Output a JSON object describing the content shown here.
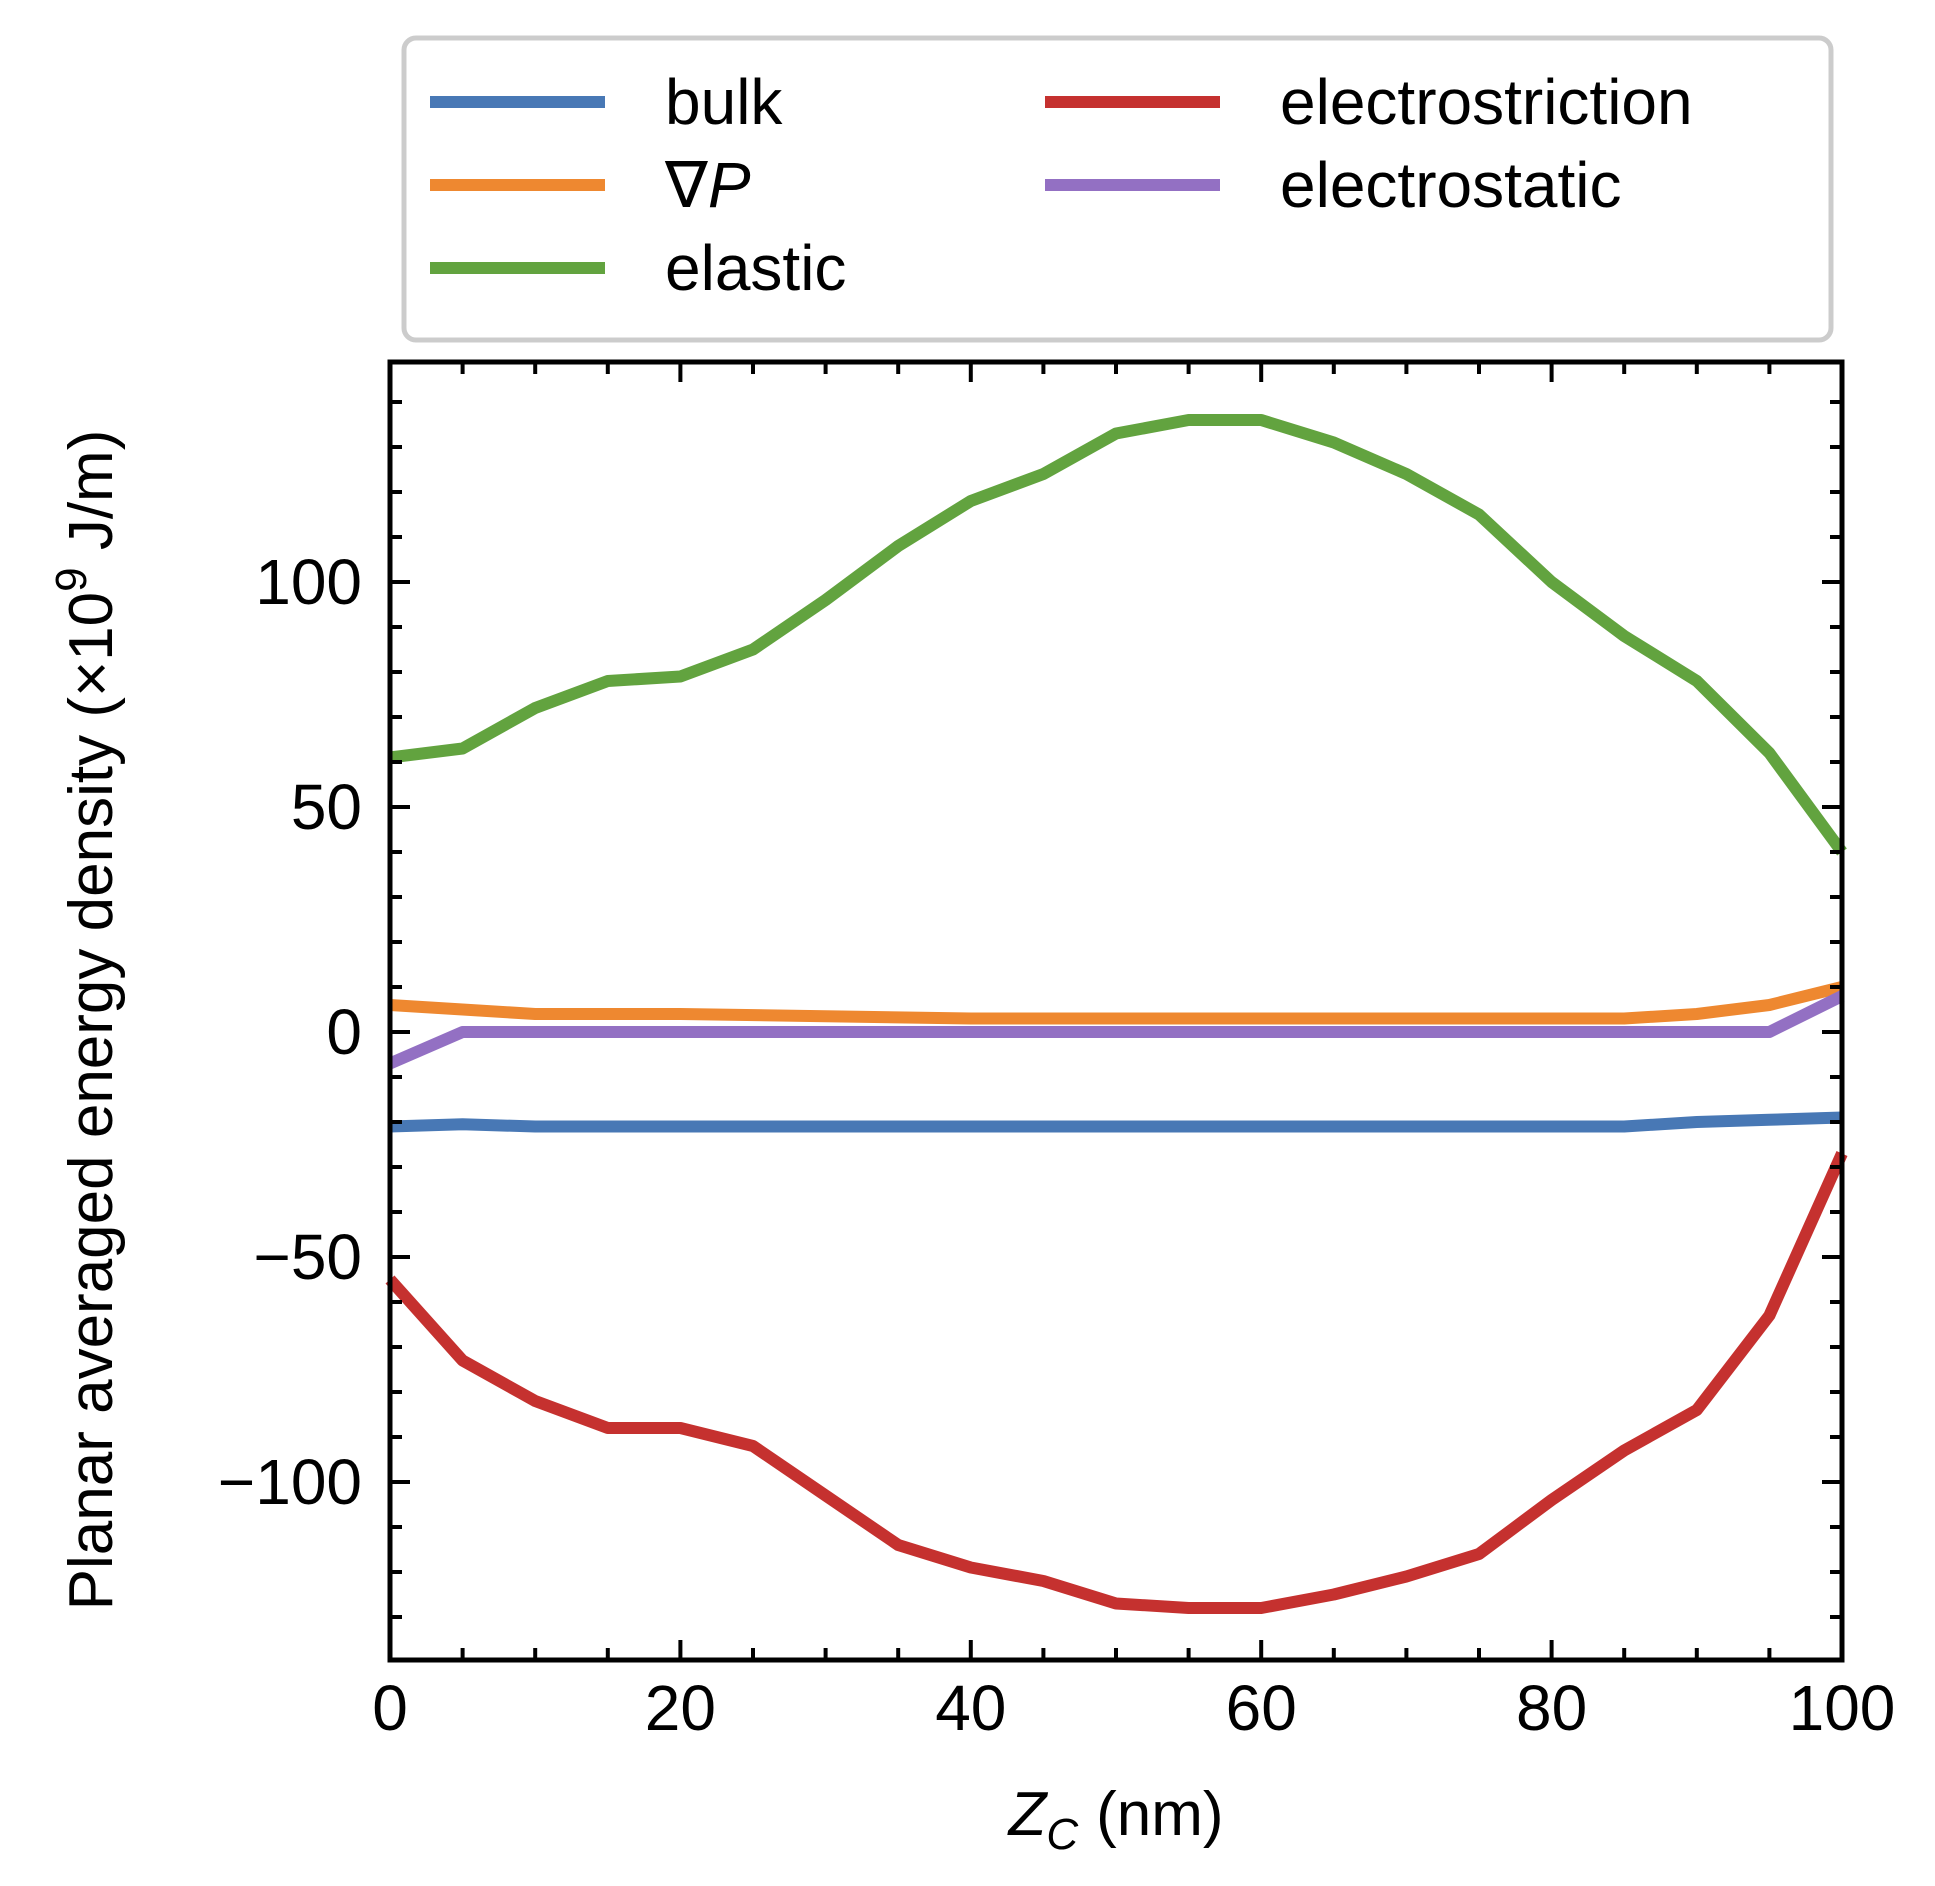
{
  "chart_data": {
    "type": "line",
    "xlabel": {
      "main": "Z",
      "sub": "C",
      "unit": "(nm)"
    },
    "ylabel": {
      "before": "Planar averaged energy density (×10",
      "exp": "9",
      "after": " J/m)"
    },
    "xlim": [
      0,
      100
    ],
    "ylim": [
      -140,
      150
    ],
    "xticks": [
      0,
      20,
      40,
      60,
      80,
      100
    ],
    "xtick_labels": [
      "0",
      "20",
      "40",
      "60",
      "80",
      "100"
    ],
    "yticks": [
      -100,
      -50,
      0,
      50,
      100
    ],
    "ytick_labels": [
      "−100",
      "−50",
      "0",
      "50",
      "100"
    ],
    "legend_position": "above plot",
    "series": [
      {
        "name": "bulk",
        "label": "bulk",
        "color": "#4878b5",
        "x": [
          0,
          5,
          10,
          20,
          40,
          60,
          80,
          85,
          90,
          95,
          100
        ],
        "y": [
          -21,
          -20.5,
          -21,
          -21,
          -21,
          -21,
          -21,
          -21,
          -20,
          -19.5,
          -19
        ]
      },
      {
        "name": "grad-P",
        "label": "∇P",
        "label_symbol": "∇",
        "label_var": "P",
        "color": "#ee8830",
        "x": [
          0,
          5,
          10,
          20,
          30,
          40,
          50,
          60,
          70,
          80,
          85,
          90,
          95,
          100
        ],
        "y": [
          6,
          5,
          4,
          4,
          3.5,
          3,
          3,
          3,
          3,
          3,
          3,
          4,
          6,
          10
        ]
      },
      {
        "name": "elastic",
        "label": "elastic",
        "color": "#62a33f",
        "x": [
          0,
          5,
          10,
          15,
          20,
          25,
          30,
          35,
          40,
          45,
          50,
          55,
          60,
          65,
          70,
          75,
          80,
          85,
          90,
          95,
          100
        ],
        "y": [
          61,
          63,
          72,
          78,
          79,
          85,
          96,
          108,
          118,
          124,
          133,
          136,
          136,
          131,
          124,
          115,
          100,
          88,
          78,
          62,
          40
        ]
      },
      {
        "name": "electrostriction",
        "label": "electrostriction",
        "color": "#c5312f",
        "x": [
          0,
          5,
          10,
          15,
          20,
          25,
          30,
          35,
          40,
          45,
          50,
          55,
          60,
          65,
          70,
          75,
          80,
          85,
          90,
          95,
          100
        ],
        "y": [
          -55,
          -73,
          -82,
          -88,
          -88,
          -92,
          -103,
          -114,
          -119,
          -122,
          -127,
          -128,
          -128,
          -125,
          -121,
          -116,
          -104,
          -93,
          -84,
          -63,
          -27
        ]
      },
      {
        "name": "electrostatic",
        "label": "electrostatic",
        "color": "#9370c3",
        "x": [
          0,
          5,
          10,
          20,
          40,
          60,
          80,
          90,
          95,
          100
        ],
        "y": [
          -7,
          0,
          0,
          0,
          0,
          0,
          0,
          0,
          0,
          8
        ]
      }
    ]
  }
}
